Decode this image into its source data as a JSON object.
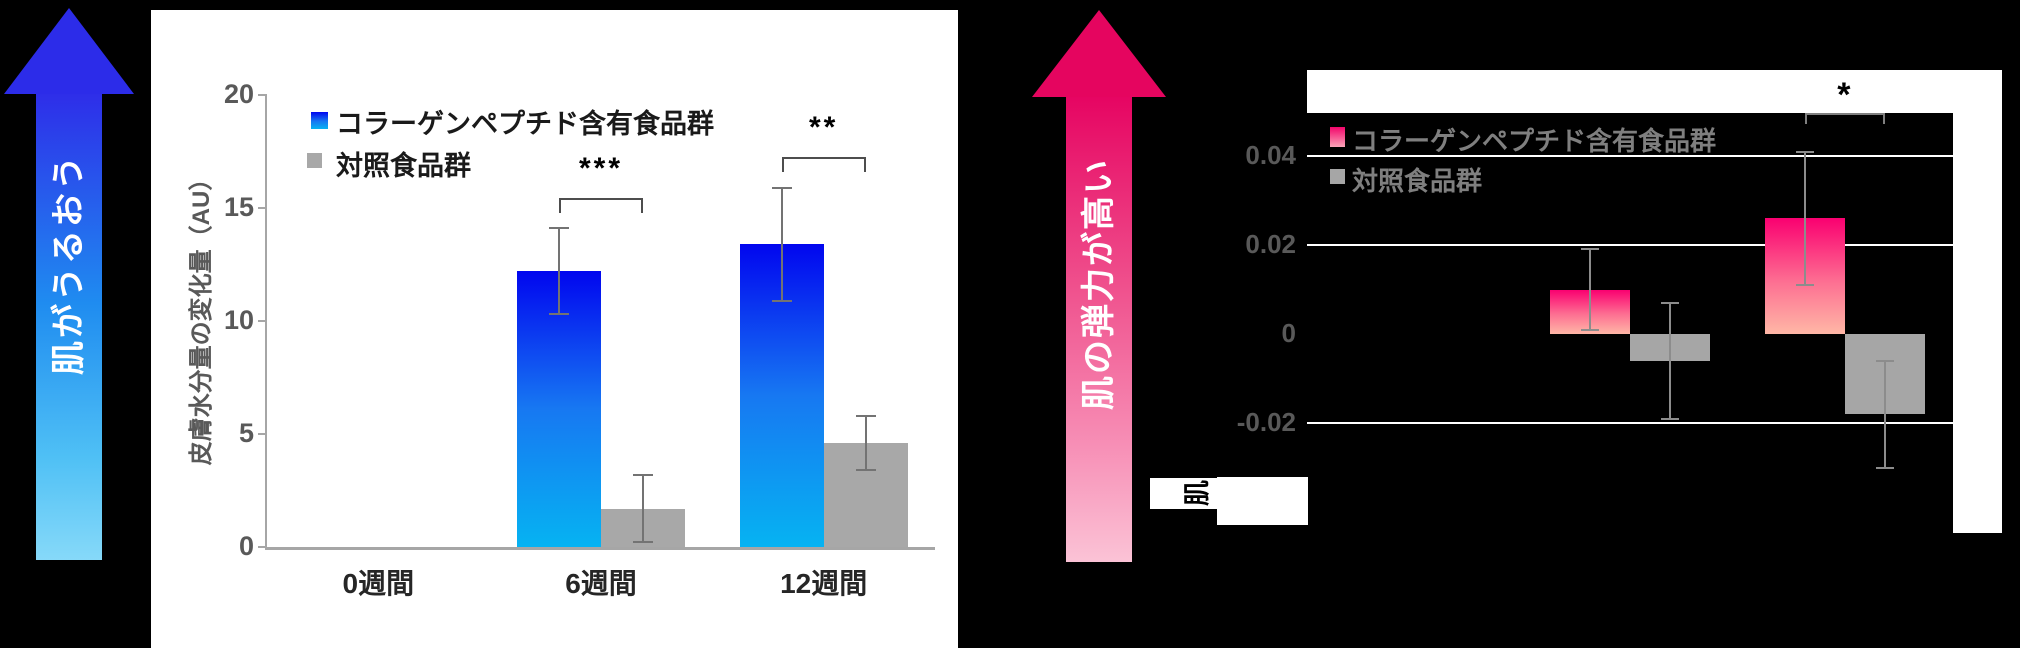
{
  "arrows": {
    "left": {
      "label": "肌がうるおう"
    },
    "right": {
      "label": "肌の弾力が高い"
    }
  },
  "colors": {
    "background": "#000000",
    "arrow_left_top": "#2b2be8",
    "arrow_left_mid": "#1f8cf0",
    "arrow_left_bottom": "#80d6f8",
    "arrow_right_top": "#e5055f",
    "arrow_right_mid": "#ef4f8c",
    "arrow_right_bottom": "#fbc3d6",
    "blue_bar_top": "#0106ef",
    "blue_bar_mid": "#1778f2",
    "blue_bar_bottom": "#06b3f2",
    "pink_bar_top": "#fa0070",
    "pink_bar_mid": "#fd6f92",
    "pink_bar_bottom": "#ffb7a6",
    "control_gray": "#a8a8a8",
    "axis_gray": "#a6a6a6",
    "tick_label_gray": "#595959",
    "gridline_white": "#ffffff"
  },
  "chart_data": [
    {
      "type": "bar",
      "title": "",
      "ylabel": "皮膚水分量の変化量（AU）",
      "categories": [
        "0週間",
        "6週間",
        "12週間"
      ],
      "series": [
        {
          "name": "コラーゲンペプチド含有食品群",
          "values": [
            0,
            12.2,
            13.4
          ],
          "errors": [
            0,
            1.9,
            2.5
          ]
        },
        {
          "name": "対照食品群",
          "values": [
            0,
            1.7,
            4.6
          ],
          "errors": [
            0,
            1.5,
            1.2
          ]
        }
      ],
      "ylim": [
        0,
        20
      ],
      "yticks": [
        {
          "value": 20,
          "label": "20"
        },
        {
          "value": 15,
          "label": "15"
        },
        {
          "value": 10,
          "label": "10"
        },
        {
          "value": 5,
          "label": "5"
        },
        {
          "value": 0,
          "label": "0"
        }
      ],
      "grid": false,
      "legend_position": "top-left",
      "significance": [
        {
          "category_index": 1,
          "label": "***"
        },
        {
          "category_index": 2,
          "label": "**"
        }
      ]
    },
    {
      "type": "bar",
      "title": "",
      "ylabel_visible_fragment": "肌",
      "categories": [
        "",
        "",
        ""
      ],
      "series": [
        {
          "name": "コラーゲンペプチド含有食品群",
          "values": [
            0,
            0.01,
            0.026
          ],
          "errors": [
            0,
            0.009,
            0.015
          ]
        },
        {
          "name": "対照食品群",
          "values": [
            0,
            -0.006,
            -0.018
          ],
          "errors": [
            0,
            0.013,
            0.012
          ]
        }
      ],
      "ylim": [
        -0.03,
        0.05
      ],
      "yticks": [
        {
          "value": 0.04,
          "label": "0.04"
        },
        {
          "value": 0.02,
          "label": "0.02"
        },
        {
          "value": 0,
          "label": "0"
        },
        {
          "value": -0.02,
          "label": "-0.02"
        }
      ],
      "gridline_values": [
        0.04,
        0.02,
        -0.02
      ],
      "grid": true,
      "legend_position": "top-left",
      "significance": [
        {
          "category_index": 2,
          "label": "*"
        }
      ]
    }
  ]
}
